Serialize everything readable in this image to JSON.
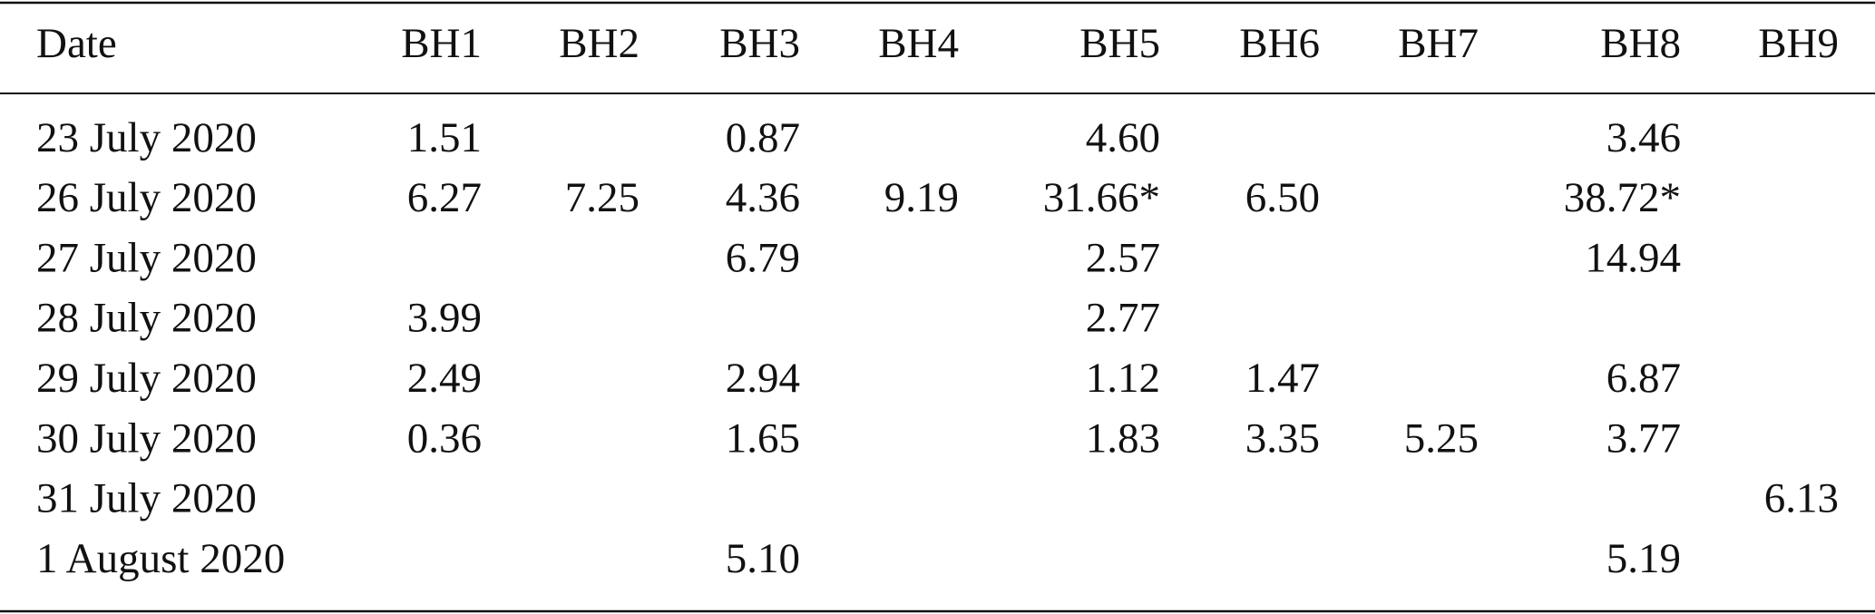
{
  "table": {
    "header": [
      "Date",
      "BH1",
      "BH2",
      "BH3",
      "BH4",
      "BH5",
      "BH6",
      "BH7",
      "BH8",
      "BH9"
    ],
    "rows": [
      [
        "23 July 2020",
        "1.51",
        null,
        "0.87",
        null,
        "4.60",
        null,
        null,
        "3.46",
        null
      ],
      [
        "26 July 2020",
        "6.27",
        "7.25",
        "4.36",
        "9.19",
        "31.66*",
        "6.50",
        null,
        "38.72*",
        null
      ],
      [
        "27 July 2020",
        null,
        null,
        "6.79",
        null,
        "2.57",
        null,
        null,
        "14.94",
        null
      ],
      [
        "28 July 2020",
        "3.99",
        null,
        null,
        null,
        "2.77",
        null,
        null,
        null,
        null
      ],
      [
        "29 July 2020",
        "2.49",
        null,
        "2.94",
        null,
        "1.12",
        "1.47",
        null,
        "6.87",
        null
      ],
      [
        "30 July 2020",
        "0.36",
        null,
        "1.65",
        null,
        "1.83",
        "3.35",
        "5.25",
        "3.77",
        null
      ],
      [
        "31 July 2020",
        null,
        null,
        null,
        null,
        null,
        null,
        null,
        null,
        "6.13"
      ],
      [
        "1 August 2020",
        null,
        null,
        "5.10",
        null,
        null,
        null,
        null,
        "5.19",
        null
      ]
    ]
  }
}
